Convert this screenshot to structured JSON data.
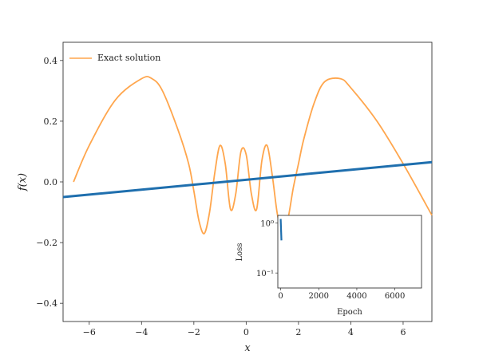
{
  "chart_data": [
    {
      "type": "line",
      "xlabel": "x",
      "ylabel": "f(x)",
      "xlim": [
        -7,
        7.1
      ],
      "ylim": [
        -0.46,
        0.46
      ],
      "xticks": [
        -6,
        -4,
        -2,
        0,
        2,
        4,
        6
      ],
      "xtick_labels": [
        "−6",
        "−4",
        "−2",
        "0",
        "2",
        "4",
        "6"
      ],
      "yticks": [
        0.4,
        0.2,
        0.0,
        -0.2,
        -0.4
      ],
      "ytick_labels": [
        "0.4",
        "0.2",
        "0.0",
        "−0.2",
        "−0.4"
      ],
      "legend": {
        "placement": "top-left",
        "entries": [
          "Exact solution"
        ]
      },
      "series": [
        {
          "name": "Exact solution",
          "color": "#ffa64d",
          "x": [
            -6.6,
            -6.0,
            -5.0,
            -4.0,
            -3.6,
            -3.2,
            -2.6,
            -2.2,
            -2.0,
            -1.8,
            -1.6,
            -1.4,
            -1.2,
            -1.0,
            -0.8,
            -0.6,
            -0.4,
            -0.2,
            0.0,
            0.2,
            0.4,
            0.6,
            0.8,
            1.0,
            1.2,
            1.4,
            1.6,
            1.8,
            2.0,
            2.2,
            2.6,
            3.0,
            3.6,
            4.0,
            5.0,
            6.0,
            7.1
          ],
          "y": [
            0.0,
            0.12,
            0.27,
            0.34,
            0.34,
            0.3,
            0.17,
            0.06,
            -0.03,
            -0.13,
            -0.17,
            -0.1,
            0.03,
            0.12,
            0.06,
            -0.09,
            -0.04,
            0.1,
            0.09,
            -0.04,
            -0.09,
            0.07,
            0.12,
            0.02,
            -0.11,
            -0.16,
            -0.12,
            -0.02,
            0.06,
            0.14,
            0.26,
            0.33,
            0.34,
            0.31,
            0.2,
            0.06,
            -0.11
          ]
        },
        {
          "name": "",
          "color": "#1f6fae",
          "x": [
            -7.0,
            7.1
          ],
          "y": [
            -0.05,
            0.065
          ]
        }
      ]
    },
    {
      "type": "line",
      "xlabel": "Epoch",
      "ylabel": "Loss",
      "yscale": "log",
      "xticks": [
        0,
        2000,
        4000,
        6000
      ],
      "xtick_labels": [
        "0",
        "2000",
        "4000",
        "6000"
      ],
      "ytick_labels": [
        "10⁰",
        "10⁻¹"
      ],
      "series": [
        {
          "name": "",
          "color": "#1f6fae",
          "x": [
            0,
            40
          ],
          "y": [
            1.2,
            0.6
          ]
        }
      ]
    }
  ]
}
